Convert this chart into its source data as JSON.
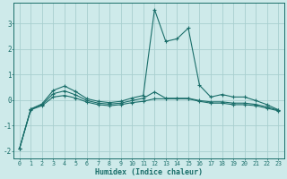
{
  "title": "",
  "xlabel": "Humidex (Indice chaleur)",
  "ylabel": "",
  "background_color": "#ceeaea",
  "grid_color": "#a8cfcf",
  "line_color": "#1a6e6a",
  "xlim": [
    -0.5,
    23.5
  ],
  "ylim": [
    -2.3,
    3.8
  ],
  "yticks": [
    -2,
    -1,
    0,
    1,
    2,
    3
  ],
  "xticks": [
    0,
    1,
    2,
    3,
    4,
    5,
    6,
    7,
    8,
    9,
    10,
    11,
    12,
    13,
    14,
    15,
    16,
    17,
    18,
    19,
    20,
    21,
    22,
    23
  ],
  "series1_x": [
    0,
    1,
    2,
    3,
    4,
    5,
    6,
    7,
    8,
    9,
    10,
    11,
    12,
    13,
    14,
    15,
    16,
    17,
    18,
    19,
    20,
    21,
    22,
    23
  ],
  "series1_y": [
    -1.9,
    -0.35,
    -0.15,
    0.38,
    0.55,
    0.33,
    0.05,
    -0.05,
    -0.1,
    -0.05,
    0.08,
    0.18,
    3.55,
    2.3,
    2.4,
    2.82,
    0.58,
    0.12,
    0.22,
    0.12,
    0.12,
    -0.02,
    -0.18,
    -0.38
  ],
  "series2_x": [
    0,
    1,
    2,
    3,
    4,
    5,
    6,
    7,
    8,
    9,
    10,
    11,
    12,
    13,
    14,
    15,
    16,
    17,
    18,
    19,
    20,
    21,
    22,
    23
  ],
  "series2_y": [
    -1.9,
    -0.38,
    -0.22,
    0.12,
    0.18,
    0.08,
    -0.08,
    -0.18,
    -0.22,
    -0.18,
    -0.1,
    -0.05,
    0.05,
    0.05,
    0.05,
    0.05,
    -0.05,
    -0.12,
    -0.12,
    -0.18,
    -0.18,
    -0.22,
    -0.32,
    -0.42
  ],
  "series3_x": [
    0,
    1,
    2,
    3,
    4,
    5,
    6,
    7,
    8,
    9,
    10,
    11,
    12,
    13,
    14,
    15,
    16,
    17,
    18,
    19,
    20,
    21,
    22,
    23
  ],
  "series3_y": [
    -1.9,
    -0.36,
    -0.18,
    0.25,
    0.36,
    0.2,
    -0.02,
    -0.12,
    -0.16,
    -0.12,
    -0.02,
    0.07,
    0.32,
    0.07,
    0.07,
    0.07,
    -0.02,
    -0.07,
    -0.07,
    -0.12,
    -0.12,
    -0.17,
    -0.27,
    -0.4
  ]
}
